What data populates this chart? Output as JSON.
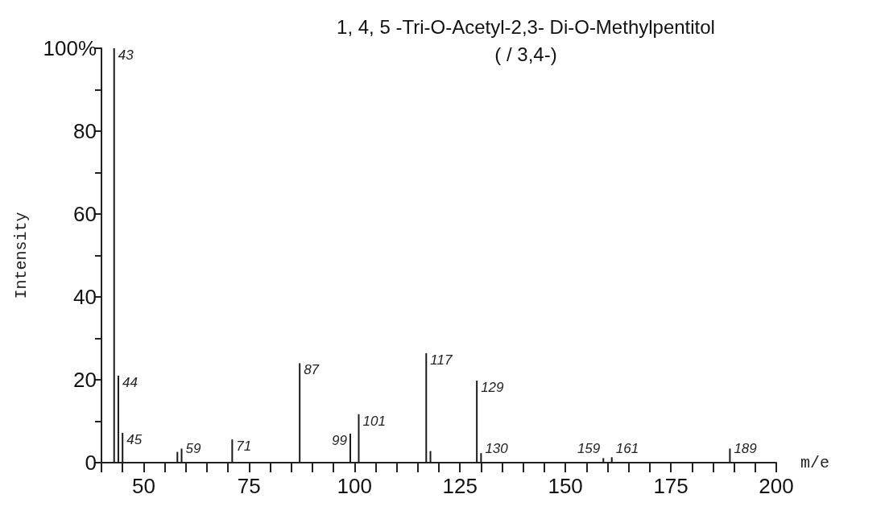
{
  "chart_data": {
    "type": "bar",
    "title": "1, 4, 5 -Tri-O-Acetyl-2,3- Di-O-Methylpentitol",
    "subtitle": "( / 3,4-)",
    "xlabel": "m/e",
    "ylabel": "Intensity",
    "x": [
      43,
      44,
      45,
      58,
      59,
      71,
      87,
      99,
      101,
      117,
      118,
      129,
      130,
      159,
      161,
      189
    ],
    "values": [
      100,
      21,
      7.2,
      2.6,
      3.4,
      5.6,
      24,
      7,
      11.7,
      26.4,
      2.8,
      19.8,
      2.3,
      1.1,
      1.3,
      3.4
    ],
    "annotations": [
      {
        "text": "43",
        "x": 43,
        "y": 100
      },
      {
        "text": "44",
        "x": 44,
        "y": 21
      },
      {
        "text": "45",
        "x": 45,
        "y": 7.2
      },
      {
        "text": "59",
        "x": 59,
        "y": 3.4
      },
      {
        "text": "71",
        "x": 71,
        "y": 5.6
      },
      {
        "text": "87",
        "x": 87,
        "y": 24
      },
      {
        "text": "99",
        "x": 99,
        "y": 7
      },
      {
        "text": "101",
        "x": 101,
        "y": 11.7
      },
      {
        "text": "117",
        "x": 117,
        "y": 26.4
      },
      {
        "text": "129",
        "x": 129,
        "y": 19.8
      },
      {
        "text": "130",
        "x": 130,
        "y": 2.3
      },
      {
        "text": "159",
        "x": 159,
        "y": 1.1
      },
      {
        "text": "161",
        "x": 161,
        "y": 1.3
      },
      {
        "text": "189",
        "x": 189,
        "y": 3.4
      }
    ],
    "color": "#1a1a1a",
    "xlim": [
      40,
      200
    ],
    "xticks": [
      {
        "value": 40,
        "label": null
      },
      {
        "value": 45,
        "label": null
      },
      50,
      {
        "value": 55,
        "label": null
      },
      {
        "value": 60,
        "label": null
      },
      {
        "value": 65,
        "label": null
      },
      {
        "value": 70,
        "label": null
      },
      75,
      {
        "value": 80,
        "label": null
      },
      {
        "value": 85,
        "label": null
      },
      {
        "value": 90,
        "label": null
      },
      {
        "value": 95,
        "label": null
      },
      100,
      {
        "value": 105,
        "label": null
      },
      {
        "value": 110,
        "label": null
      },
      {
        "value": 115,
        "label": null
      },
      {
        "value": 120,
        "label": null
      },
      125,
      {
        "value": 130,
        "label": null
      },
      {
        "value": 135,
        "label": null
      },
      {
        "value": 140,
        "label": null
      },
      {
        "value": 145,
        "label": null
      },
      150,
      {
        "value": 155,
        "label": null
      },
      {
        "value": 160,
        "label": null
      },
      {
        "value": 165,
        "label": null
      },
      {
        "value": 170,
        "label": null
      },
      175,
      {
        "value": 180,
        "label": null
      },
      {
        "value": 185,
        "label": null
      },
      {
        "value": 190,
        "label": null
      },
      {
        "value": 195,
        "label": null
      },
      200
    ],
    "ylim": [
      0,
      100
    ],
    "yticks": [
      0,
      {
        "value": 10,
        "label": null
      },
      20,
      {
        "value": 30,
        "label": null
      },
      40,
      {
        "value": 50,
        "label": null
      },
      60,
      {
        "value": 70,
        "label": null
      },
      80,
      {
        "value": 90,
        "label": null
      },
      {
        "value": 100,
        "label": "100%"
      }
    ],
    "grid": false
  }
}
